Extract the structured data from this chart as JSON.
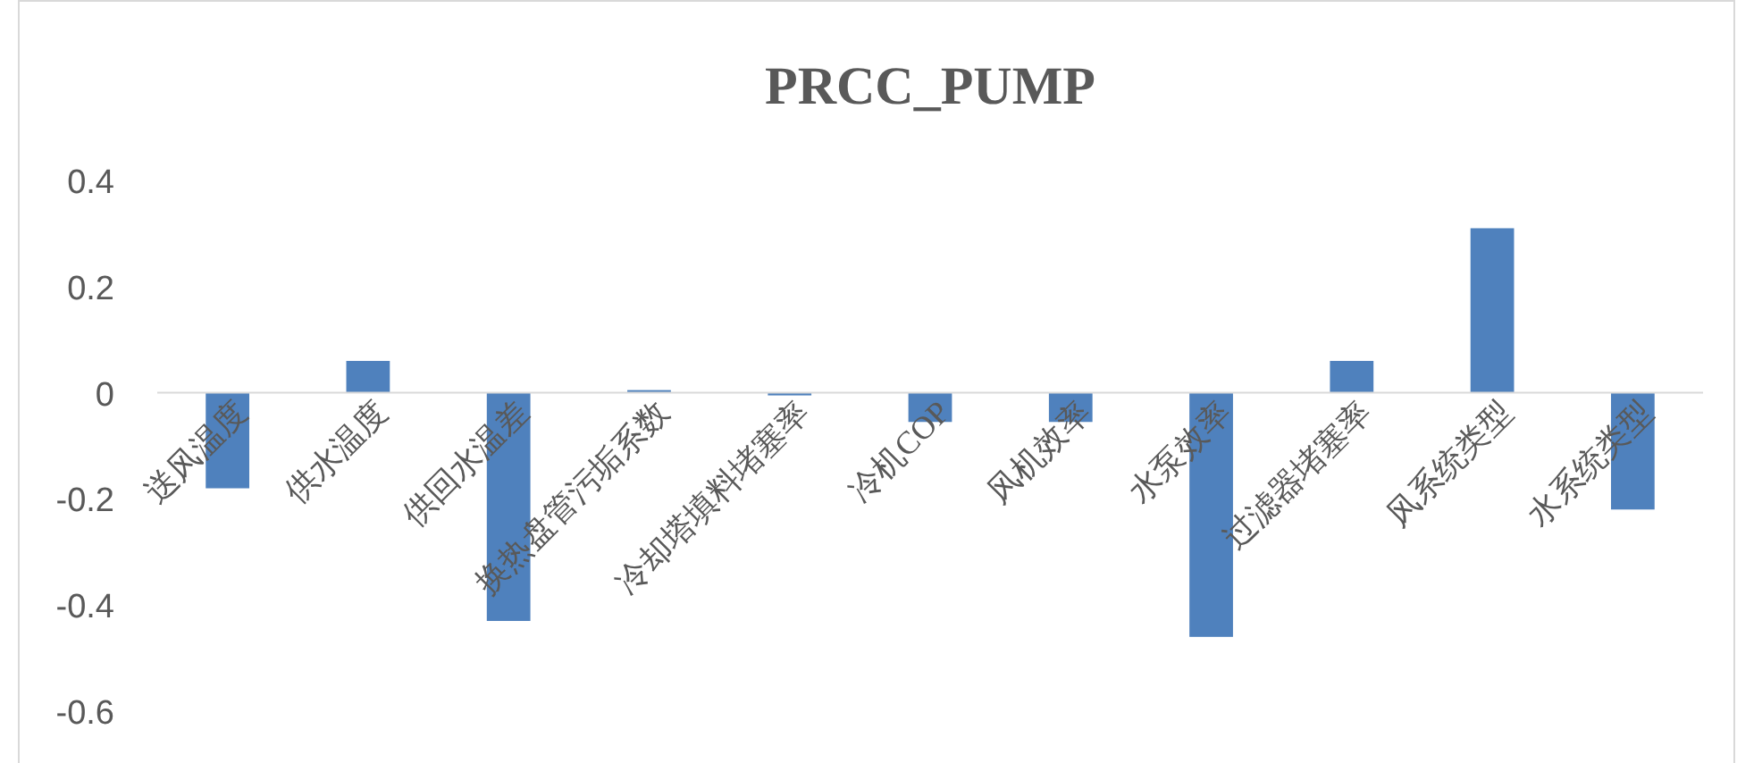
{
  "chart_data": {
    "type": "bar",
    "title": "PRCC_PUMP",
    "categories": [
      "送风温度",
      "供水温度",
      "供回水温差",
      "换热盘管污垢系数",
      "冷却塔填料堵塞率",
      "冷机COP",
      "风机效率",
      "水泵效率",
      "过滤器堵塞率",
      "风系统类型",
      "水系统类型"
    ],
    "series": [
      {
        "color": "#4f81bd",
        "values": [
          -0.18,
          0.06,
          -0.43,
          0.005,
          -0.005,
          -0.055,
          -0.055,
          -0.46,
          0.06,
          0.31,
          -0.22
        ]
      }
    ],
    "ylim": [
      -0.6,
      0.4
    ],
    "yticks": [
      -0.6,
      -0.4,
      -0.2,
      0,
      0.2,
      0.4
    ]
  }
}
